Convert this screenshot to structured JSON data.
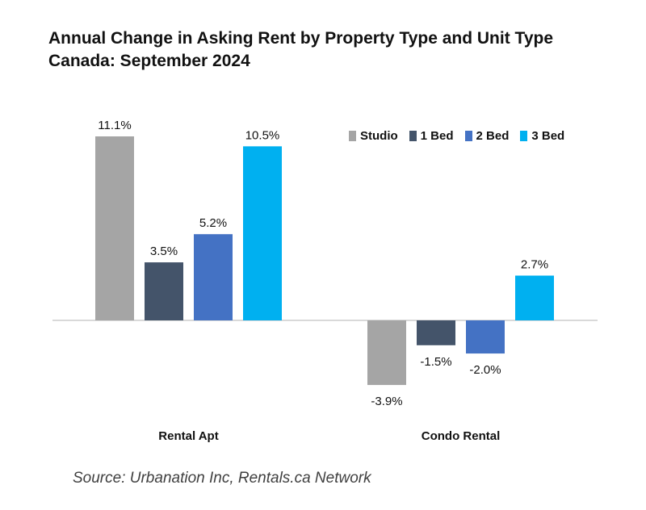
{
  "chart_data": {
    "type": "bar",
    "title": "Annual Change in Asking Rent by Property Type and Unit Type",
    "subtitle": "Canada: September 2024",
    "categories": [
      "Rental Apt",
      "Condo Rental"
    ],
    "series": [
      {
        "name": "Studio",
        "color": "#a5a5a5",
        "values": [
          11.1,
          -3.9
        ],
        "labels": [
          "11.1%",
          "-3.9%"
        ]
      },
      {
        "name": "1 Bed",
        "color": "#44546a",
        "values": [
          3.5,
          -1.5
        ],
        "labels": [
          "3.5%",
          "-1.5%"
        ]
      },
      {
        "name": "2 Bed",
        "color": "#4472c4",
        "values": [
          5.2,
          -2.0
        ],
        "labels": [
          "5.2%",
          "-2.0%"
        ]
      },
      {
        "name": "3 Bed",
        "color": "#00b0f0",
        "values": [
          10.5,
          2.7
        ],
        "labels": [
          "10.5%",
          "2.7%"
        ]
      }
    ],
    "xlabel": "",
    "ylabel": "",
    "grid": false,
    "legend": "top-right"
  },
  "source": "Source: Urbanation Inc, Rentals.ca Network"
}
